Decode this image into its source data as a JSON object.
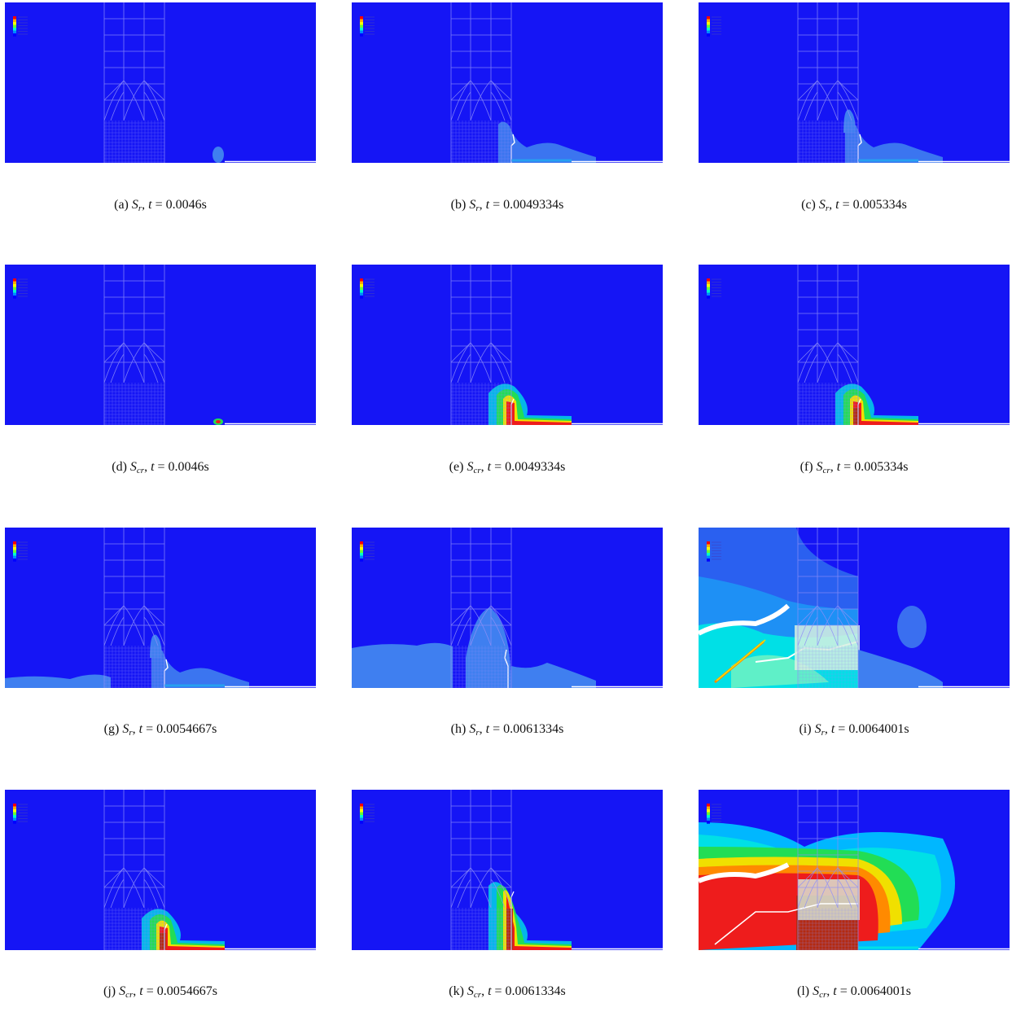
{
  "figure": {
    "panels": [
      {
        "id": "a",
        "label": "(a)",
        "sym": "S",
        "sub": "r",
        "tvar": "t",
        "value": "= 0.0046s",
        "field": "Sr",
        "stage": 0
      },
      {
        "id": "b",
        "label": "(b)",
        "sym": "S",
        "sub": "r",
        "tvar": "t",
        "value": "= 0.0049334s",
        "field": "Sr",
        "stage": 1
      },
      {
        "id": "c",
        "label": "(c)",
        "sym": "S",
        "sub": "r",
        "tvar": "t",
        "value": "= 0.005334s",
        "field": "Sr",
        "stage": 2
      },
      {
        "id": "d",
        "label": "(d)",
        "sym": "S",
        "sub": "cr",
        "tvar": "t",
        "value": "= 0.0046s",
        "field": "Scr",
        "stage": 0
      },
      {
        "id": "e",
        "label": "(e)",
        "sym": "S",
        "sub": "cr",
        "tvar": "t",
        "value": "= 0.0049334s",
        "field": "Scr",
        "stage": 1
      },
      {
        "id": "f",
        "label": "(f)",
        "sym": "S",
        "sub": "cr",
        "tvar": "t",
        "value": "= 0.005334s",
        "field": "Scr",
        "stage": 2
      },
      {
        "id": "g",
        "label": "(g)",
        "sym": "S",
        "sub": "r",
        "tvar": "t",
        "value": "= 0.0054667s",
        "field": "Sr",
        "stage": 3
      },
      {
        "id": "h",
        "label": "(h)",
        "sym": "S",
        "sub": "r",
        "tvar": "t",
        "value": "= 0.0061334s",
        "field": "Sr",
        "stage": 4
      },
      {
        "id": "i",
        "label": "(i)",
        "sym": "S",
        "sub": "r",
        "tvar": "t",
        "value": "= 0.0064001s",
        "field": "Sr",
        "stage": 5
      },
      {
        "id": "j",
        "label": "(j)",
        "sym": "S",
        "sub": "cr",
        "tvar": "t",
        "value": "= 0.0054667s",
        "field": "Scr",
        "stage": 3
      },
      {
        "id": "k",
        "label": "(k)",
        "sym": "S",
        "sub": "cr",
        "tvar": "t",
        "value": "= 0.0061334s",
        "field": "Scr",
        "stage": 4
      },
      {
        "id": "l",
        "label": "(l)",
        "sym": "S",
        "sub": "cr",
        "tvar": "t",
        "value": "= 0.0064001s",
        "field": "Scr",
        "stage": 5
      }
    ],
    "colors": {
      "background": "#1515f5",
      "mesh": "#8f8ff8",
      "legend": [
        "#ff0000",
        "#ffaa00",
        "#ffff00",
        "#66ff33",
        "#00ffcc",
        "#0088ff",
        "#0000ff"
      ],
      "pale": "#3f7ff0",
      "crack_light": "#27a0f0",
      "cyan": "#00e0e6",
      "green": "#22dd55",
      "yellow": "#f0e000",
      "orange": "#ff8a00",
      "red": "#ee1c1c",
      "darkred": "#b42a10",
      "white": "#ffffff"
    }
  }
}
